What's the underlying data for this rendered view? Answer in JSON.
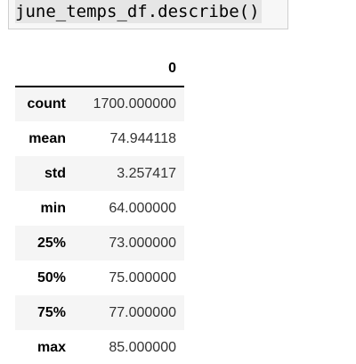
{
  "code_cell": {
    "source": "june_temps_df.describe()"
  },
  "output": {
    "columns": [
      "",
      "0"
    ],
    "rows": [
      {
        "label": "count",
        "value": "1700.000000"
      },
      {
        "label": "mean",
        "value": "74.944118"
      },
      {
        "label": "std",
        "value": "3.257417"
      },
      {
        "label": "min",
        "value": "64.000000"
      },
      {
        "label": "25%",
        "value": "73.000000"
      },
      {
        "label": "50%",
        "value": "75.000000"
      },
      {
        "label": "75%",
        "value": "77.000000"
      },
      {
        "label": "max",
        "value": "85.000000"
      }
    ]
  }
}
